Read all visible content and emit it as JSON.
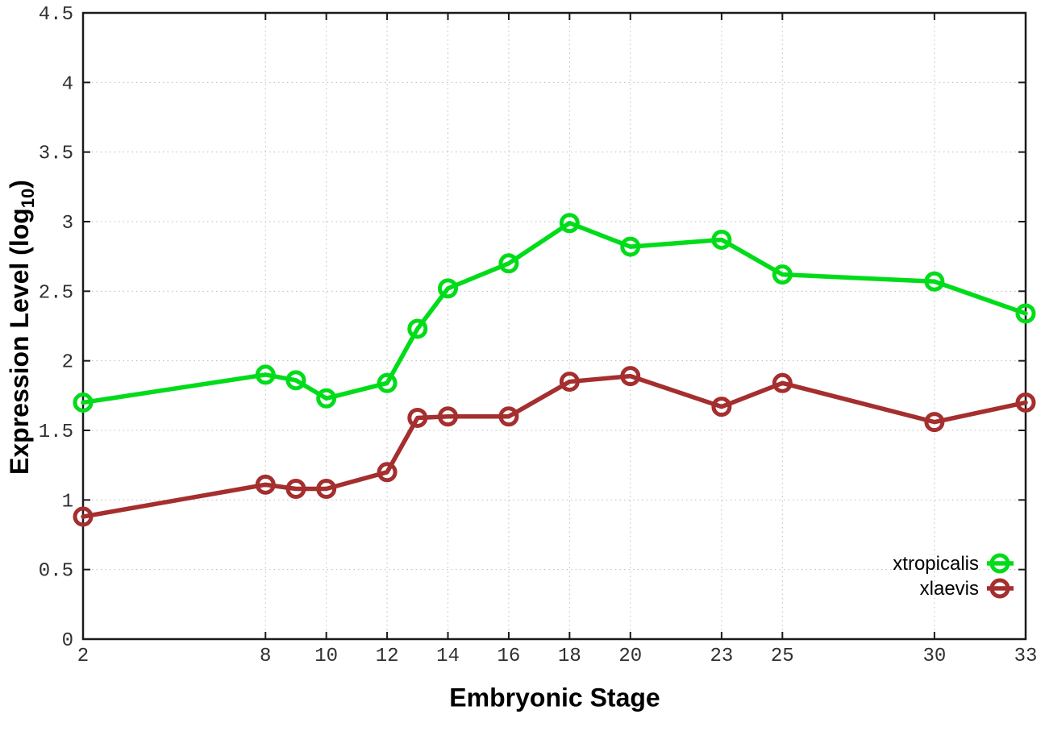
{
  "chart_data": {
    "type": "line",
    "title": "",
    "xlabel": "Embryonic Stage",
    "ylabel_prefix": "Expression Level (log",
    "ylabel_sub": "10",
    "ylabel_suffix": ")",
    "xlim": [
      2,
      33
    ],
    "ylim": [
      0,
      4.5
    ],
    "x_ticks": [
      2,
      8,
      10,
      12,
      14,
      16,
      18,
      20,
      23,
      25,
      30,
      33
    ],
    "y_ticks": [
      0,
      0.5,
      1,
      1.5,
      2,
      2.5,
      3,
      3.5,
      4,
      4.5
    ],
    "grid": true,
    "grid_style": "dotted",
    "legend_position": "bottom-right",
    "colors": {
      "xtropicalis": "#00dc19",
      "xlaevis": "#a52e2e",
      "grid": "#bbbbbb",
      "border": "#1a1a1a",
      "tick_text": "#303030"
    },
    "series": [
      {
        "name": "xtropicalis",
        "color": "#00dc19",
        "x": [
          2,
          8,
          9,
          10,
          12,
          13,
          14,
          16,
          18,
          20,
          23,
          25,
          30,
          33
        ],
        "values": [
          1.7,
          1.9,
          1.86,
          1.73,
          1.84,
          2.23,
          2.52,
          2.7,
          2.99,
          2.82,
          2.87,
          2.62,
          2.57,
          2.34
        ]
      },
      {
        "name": "xlaevis",
        "color": "#a52e2e",
        "x": [
          2,
          8,
          9,
          10,
          12,
          13,
          14,
          16,
          18,
          20,
          23,
          25,
          30,
          33
        ],
        "values": [
          0.88,
          1.11,
          1.08,
          1.08,
          1.2,
          1.59,
          1.6,
          1.6,
          1.85,
          1.89,
          1.67,
          1.84,
          1.56,
          1.7
        ]
      }
    ]
  }
}
